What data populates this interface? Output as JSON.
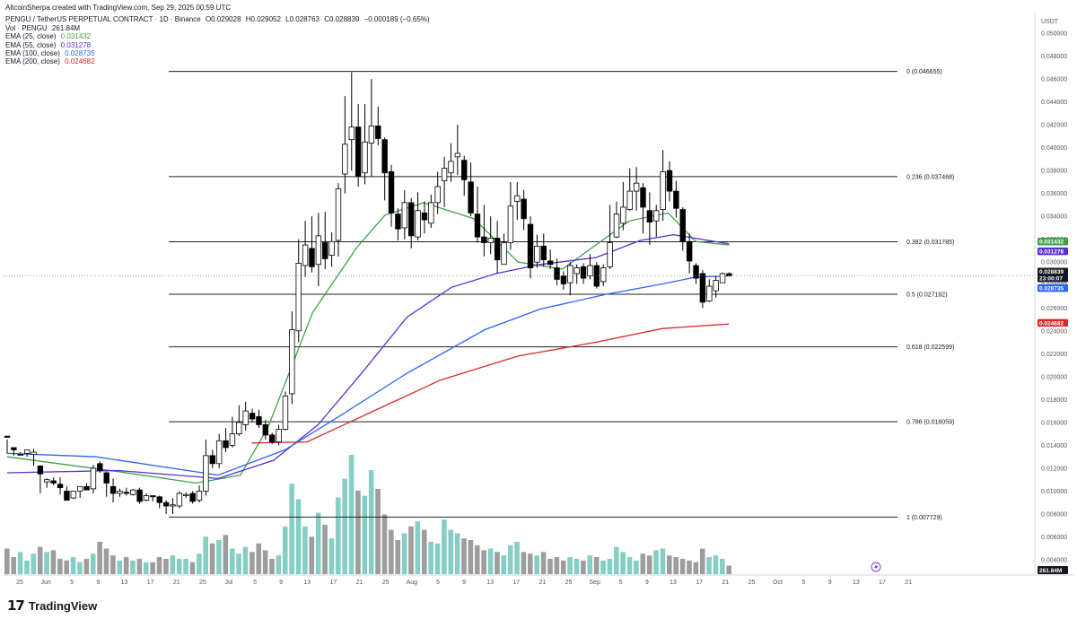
{
  "header": {
    "credit": "AltcoinSherpa created with TradingView.com, Sep 29, 2025 00:59 UTC",
    "symbol_line": "PENGU / TetherUS PERPETUAL CONTRACT · 1D · Binance",
    "open": "O0.029028",
    "high": "H0.029052",
    "low": "L0.028763",
    "close": "C0.028839",
    "change": "−0.000189 (−0.65%)",
    "vol_label": "Vol · PENGU",
    "vol_value": "261.84M",
    "ema25_label": "EMA (25, close)",
    "ema25_value": "0.031432",
    "ema55_label": "EMA (55, close)",
    "ema55_value": "0.031278",
    "ema100_label": "EMA (100, close)",
    "ema100_value": "0.028735",
    "ema200_label": "EMA (200, close)",
    "ema200_value": "0.024682"
  },
  "colors": {
    "ema25": "#3fa14a",
    "ema55": "#5b2dd6",
    "ema100": "#2962ff",
    "ema200": "#d62a2a",
    "change_red": "#ef5350",
    "volume": "#70c6bb",
    "volume_down": "#8c8c8c"
  },
  "chart_data": {
    "type": "candlestick",
    "currency_label": "USDT",
    "y_ticks": [
      "0.050000",
      "0.048000",
      "0.046000",
      "0.044000",
      "0.042000",
      "0.040000",
      "0.038000",
      "0.036000",
      "0.034000",
      "0.032000",
      "0.030000",
      "0.028000",
      "0.026000",
      "0.024000",
      "0.022000",
      "0.020000",
      "0.018000",
      "0.016000",
      "0.014000",
      "0.012000",
      "0.010000",
      "0.008000",
      "0.006000",
      "0.004000"
    ],
    "x_ticks": [
      "25",
      "Jun",
      "5",
      "9",
      "13",
      "17",
      "21",
      "25",
      "Jul",
      "5",
      "9",
      "13",
      "17",
      "21",
      "25",
      "Aug",
      "5",
      "9",
      "13",
      "17",
      "21",
      "25",
      "Sep",
      "5",
      "9",
      "13",
      "17",
      "21",
      "25",
      "Oct",
      "5",
      "9",
      "13",
      "17",
      "21"
    ],
    "fib_levels": [
      {
        "label": "0 (0.046655)",
        "value": 0.046655
      },
      {
        "label": "0.236 (0.037468)",
        "value": 0.037468
      },
      {
        "label": "0.382 (0.031785)",
        "value": 0.031785
      },
      {
        "label": "0.5 (0.027192)",
        "value": 0.027192
      },
      {
        "label": "0.618 (0.022599)",
        "value": 0.022599
      },
      {
        "label": "0.786 (0.016059)",
        "value": 0.016059
      },
      {
        "label": "1 (0.007729)",
        "value": 0.007729
      }
    ],
    "price_badges": [
      {
        "text": "0.031432",
        "value": 0.031432,
        "color": "#3fa14a"
      },
      {
        "text": "0.031278",
        "value": 0.031278,
        "color": "#5b2dd6"
      },
      {
        "text": "0.028839",
        "value": 0.028839,
        "color": "#131722",
        "sub": "23:00:07"
      },
      {
        "text": "0.028735",
        "value": 0.028735,
        "color": "#2962ff"
      },
      {
        "text": "0.024682",
        "value": 0.024682,
        "color": "#d62a2a"
      }
    ],
    "volume_badge": "261.84M",
    "candles": [
      [
        0.0148,
        0.0147,
        0.0145,
        0.0133
      ],
      [
        0.0138,
        0.0136,
        0.0138,
        0.0131
      ],
      [
        0.0132,
        0.0132,
        0.0134,
        0.0133
      ],
      [
        0.0133,
        0.0136,
        0.0134,
        0.013
      ],
      [
        0.0132,
        0.0134,
        0.0137,
        0.0122
      ],
      [
        0.0122,
        0.0115,
        0.0122,
        0.0098
      ],
      [
        0.0108,
        0.011,
        0.0111,
        0.0103
      ],
      [
        0.0109,
        0.0107,
        0.0112,
        0.0105
      ],
      [
        0.0106,
        0.0103,
        0.0112,
        0.0097
      ],
      [
        0.01,
        0.0092,
        0.0104,
        0.0094
      ],
      [
        0.0094,
        0.01,
        0.01,
        0.0093
      ],
      [
        0.01,
        0.0104,
        0.0104,
        0.0094
      ],
      [
        0.0104,
        0.0101,
        0.0107,
        0.0101
      ],
      [
        0.0102,
        0.012,
        0.0123,
        0.0098
      ],
      [
        0.0124,
        0.0118,
        0.0126,
        0.0116
      ],
      [
        0.0116,
        0.0107,
        0.0117,
        0.0095
      ],
      [
        0.0104,
        0.0098,
        0.0111,
        0.009
      ],
      [
        0.0098,
        0.01,
        0.0102,
        0.0095
      ],
      [
        0.0099,
        0.0098,
        0.0103,
        0.0096
      ],
      [
        0.0097,
        0.0101,
        0.0102,
        0.0096
      ],
      [
        0.0101,
        0.0091,
        0.0103,
        0.0089
      ],
      [
        0.0092,
        0.0096,
        0.0098,
        0.0091
      ],
      [
        0.0096,
        0.0095,
        0.0096,
        0.0091
      ],
      [
        0.0095,
        0.009,
        0.0096,
        0.0085
      ],
      [
        0.009,
        0.0087,
        0.0092,
        0.008
      ],
      [
        0.0087,
        0.0088,
        0.0094,
        0.008
      ],
      [
        0.0087,
        0.0098,
        0.01,
        0.0085
      ],
      [
        0.0096,
        0.0097,
        0.0099,
        0.0094
      ],
      [
        0.0098,
        0.0091,
        0.01,
        0.0089
      ],
      [
        0.0092,
        0.01,
        0.0105,
        0.009
      ],
      [
        0.01,
        0.0131,
        0.0145,
        0.0096
      ],
      [
        0.0131,
        0.0124,
        0.0136,
        0.012
      ],
      [
        0.0124,
        0.0144,
        0.015,
        0.012
      ],
      [
        0.0144,
        0.0138,
        0.0155,
        0.0134
      ],
      [
        0.014,
        0.015,
        0.0165,
        0.0138
      ],
      [
        0.015,
        0.016,
        0.0175,
        0.0148
      ],
      [
        0.0158,
        0.017,
        0.0178,
        0.0153
      ],
      [
        0.0168,
        0.0163,
        0.0172,
        0.016
      ],
      [
        0.0165,
        0.0158,
        0.0171,
        0.0155
      ],
      [
        0.0158,
        0.0149,
        0.0162,
        0.0145
      ],
      [
        0.0149,
        0.0143,
        0.0151,
        0.0141
      ],
      [
        0.0143,
        0.0154,
        0.0158,
        0.014
      ],
      [
        0.0154,
        0.0183,
        0.0187,
        0.0153
      ],
      [
        0.0185,
        0.0241,
        0.0257,
        0.0176
      ],
      [
        0.024,
        0.0299,
        0.032,
        0.023
      ],
      [
        0.0297,
        0.0315,
        0.0336,
        0.0287
      ],
      [
        0.0312,
        0.0296,
        0.034,
        0.0291
      ],
      [
        0.0298,
        0.0323,
        0.0343,
        0.0279
      ],
      [
        0.0317,
        0.0303,
        0.0344,
        0.0294
      ],
      [
        0.0306,
        0.0318,
        0.0326,
        0.0296
      ],
      [
        0.0319,
        0.0364,
        0.0369,
        0.0305
      ],
      [
        0.0377,
        0.0403,
        0.0445,
        0.036
      ],
      [
        0.0407,
        0.0418,
        0.0466,
        0.038
      ],
      [
        0.0418,
        0.0375,
        0.0438,
        0.0366
      ],
      [
        0.0378,
        0.0405,
        0.0438,
        0.0368
      ],
      [
        0.0404,
        0.0419,
        0.046,
        0.0375
      ],
      [
        0.0419,
        0.0408,
        0.0436,
        0.0402
      ],
      [
        0.0407,
        0.0378,
        0.0409,
        0.0354
      ],
      [
        0.0379,
        0.0343,
        0.0385,
        0.0331
      ],
      [
        0.0342,
        0.0329,
        0.0347,
        0.0319
      ],
      [
        0.033,
        0.0352,
        0.0363,
        0.032
      ],
      [
        0.0352,
        0.0323,
        0.0356,
        0.0312
      ],
      [
        0.0322,
        0.0345,
        0.0361,
        0.0319
      ],
      [
        0.0343,
        0.0337,
        0.0353,
        0.0325
      ],
      [
        0.0334,
        0.0352,
        0.0359,
        0.033
      ],
      [
        0.0352,
        0.0366,
        0.0379,
        0.0342
      ],
      [
        0.0371,
        0.0382,
        0.0392,
        0.0348
      ],
      [
        0.0378,
        0.0388,
        0.0404,
        0.037
      ],
      [
        0.0392,
        0.0395,
        0.042,
        0.0376
      ],
      [
        0.0389,
        0.0372,
        0.0393,
        0.0358
      ],
      [
        0.037,
        0.0343,
        0.0387,
        0.034
      ],
      [
        0.0342,
        0.0322,
        0.0366,
        0.0317
      ],
      [
        0.0322,
        0.0317,
        0.035,
        0.0305
      ],
      [
        0.0317,
        0.0321,
        0.034,
        0.0307
      ],
      [
        0.0321,
        0.0302,
        0.0336,
        0.029
      ],
      [
        0.0298,
        0.0317,
        0.0325,
        0.0298
      ],
      [
        0.0317,
        0.0349,
        0.037,
        0.0311
      ],
      [
        0.0353,
        0.0358,
        0.037,
        0.0337
      ],
      [
        0.0355,
        0.0338,
        0.0363,
        0.0328
      ],
      [
        0.0333,
        0.0295,
        0.034,
        0.0286
      ],
      [
        0.03,
        0.0314,
        0.0324,
        0.0295
      ],
      [
        0.0314,
        0.0302,
        0.0325,
        0.0296
      ],
      [
        0.0301,
        0.0298,
        0.0311,
        0.0294
      ],
      [
        0.0295,
        0.0285,
        0.0303,
        0.028
      ],
      [
        0.0288,
        0.0281,
        0.0292,
        0.0276
      ],
      [
        0.0282,
        0.0297,
        0.03,
        0.0271
      ],
      [
        0.029,
        0.0295,
        0.0298,
        0.0281
      ],
      [
        0.0296,
        0.0286,
        0.0299,
        0.0281
      ],
      [
        0.0288,
        0.0297,
        0.0307,
        0.0285
      ],
      [
        0.0297,
        0.0279,
        0.03,
        0.0277
      ],
      [
        0.0283,
        0.0295,
        0.0298,
        0.0279
      ],
      [
        0.0296,
        0.0317,
        0.035,
        0.0294
      ],
      [
        0.0322,
        0.0342,
        0.0353,
        0.0321
      ],
      [
        0.0334,
        0.0348,
        0.037,
        0.0328
      ],
      [
        0.0346,
        0.0362,
        0.0382,
        0.0345
      ],
      [
        0.0362,
        0.0369,
        0.0383,
        0.0345
      ],
      [
        0.0365,
        0.0348,
        0.0369,
        0.0325
      ],
      [
        0.0345,
        0.0335,
        0.0361,
        0.0315
      ],
      [
        0.0336,
        0.0345,
        0.035,
        0.0322
      ],
      [
        0.0346,
        0.0379,
        0.0398,
        0.0336
      ],
      [
        0.038,
        0.0362,
        0.0388,
        0.0353
      ],
      [
        0.0362,
        0.0347,
        0.0371,
        0.0339
      ],
      [
        0.0346,
        0.0318,
        0.0348,
        0.031
      ],
      [
        0.0318,
        0.0301,
        0.0325,
        0.029
      ],
      [
        0.0297,
        0.0286,
        0.0299,
        0.0281
      ],
      [
        0.029,
        0.0265,
        0.0293,
        0.026
      ],
      [
        0.0266,
        0.0279,
        0.0285,
        0.0265
      ],
      [
        0.0275,
        0.0284,
        0.0288,
        0.0269
      ],
      [
        0.0282,
        0.029,
        0.0291,
        0.0282
      ],
      [
        0.029,
        0.0288,
        0.0291,
        0.0288
      ]
    ],
    "volumes": [
      15,
      10,
      13,
      8,
      12,
      16,
      13,
      14,
      9,
      8,
      10,
      7,
      9,
      12,
      19,
      15,
      11,
      8,
      10,
      8,
      9,
      7,
      7,
      10,
      9,
      11,
      9,
      9,
      7,
      12,
      22,
      18,
      20,
      23,
      15,
      12,
      16,
      13,
      18,
      14,
      9,
      11,
      28,
      53,
      44,
      28,
      22,
      36,
      29,
      21,
      45,
      56,
      70,
      49,
      46,
      61,
      50,
      35,
      26,
      20,
      24,
      28,
      31,
      26,
      19,
      18,
      32,
      26,
      24,
      21,
      20,
      17,
      14,
      15,
      13,
      11,
      17,
      19,
      13,
      12,
      11,
      13,
      9,
      10,
      8,
      10,
      9,
      8,
      11,
      10,
      8,
      9,
      16,
      13,
      10,
      8,
      12,
      11,
      14,
      15,
      11,
      10,
      9,
      8,
      7,
      15,
      10,
      11,
      9,
      5
    ],
    "ema25": [
      [
        0,
        0.013
      ],
      [
        20,
        0.0117
      ],
      [
        34,
        0.0107
      ],
      [
        42,
        0.0114
      ],
      [
        47,
        0.0156
      ],
      [
        55,
        0.0256
      ],
      [
        63,
        0.0313
      ],
      [
        68,
        0.0341
      ],
      [
        75,
        0.0352
      ],
      [
        84,
        0.0338
      ],
      [
        92,
        0.03
      ],
      [
        100,
        0.0294
      ],
      [
        106,
        0.0315
      ],
      [
        112,
        0.0336
      ],
      [
        119,
        0.0343
      ],
      [
        124,
        0.0318
      ],
      [
        130,
        0.0315
      ]
    ],
    "ema55": [
      [
        0,
        0.0116
      ],
      [
        20,
        0.0118
      ],
      [
        38,
        0.0111
      ],
      [
        48,
        0.0127
      ],
      [
        56,
        0.0158
      ],
      [
        64,
        0.0204
      ],
      [
        72,
        0.0252
      ],
      [
        80,
        0.0278
      ],
      [
        88,
        0.029
      ],
      [
        96,
        0.0298
      ],
      [
        106,
        0.0304
      ],
      [
        114,
        0.0319
      ],
      [
        120,
        0.0324
      ],
      [
        130,
        0.0316
      ]
    ],
    "ema100": [
      [
        0,
        0.0133
      ],
      [
        16,
        0.013
      ],
      [
        38,
        0.0114
      ],
      [
        50,
        0.0136
      ],
      [
        60,
        0.0166
      ],
      [
        72,
        0.0203
      ],
      [
        86,
        0.0241
      ],
      [
        96,
        0.0259
      ],
      [
        108,
        0.0272
      ],
      [
        118,
        0.0281
      ],
      [
        124,
        0.0287
      ],
      [
        130,
        0.0288
      ]
    ],
    "ema200": [
      [
        44,
        0.0142
      ],
      [
        54,
        0.0143
      ],
      [
        66,
        0.017
      ],
      [
        78,
        0.0197
      ],
      [
        92,
        0.0218
      ],
      [
        106,
        0.023
      ],
      [
        118,
        0.0242
      ],
      [
        130,
        0.0246
      ]
    ]
  }
}
